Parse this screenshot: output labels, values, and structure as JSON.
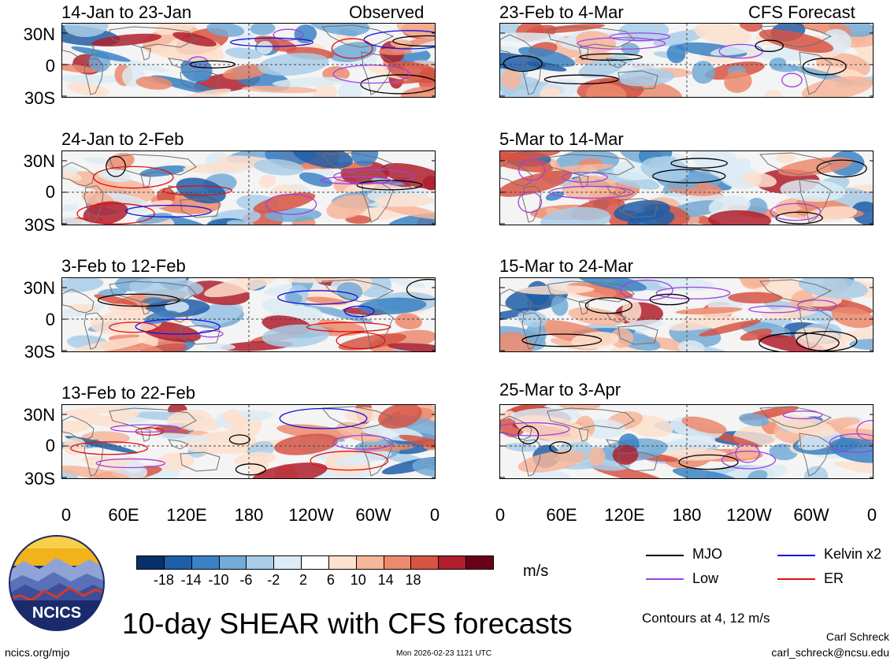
{
  "header": {
    "left_label": "Observed",
    "right_label": "CFS Forecast"
  },
  "panels_left": [
    {
      "period": "14-Jan to 23-Jan"
    },
    {
      "period": "24-Jan to 2-Feb"
    },
    {
      "period": "3-Feb to 12-Feb"
    },
    {
      "period": "13-Feb to 22-Feb"
    }
  ],
  "panels_right": [
    {
      "period": "23-Feb to 4-Mar"
    },
    {
      "period": "5-Mar to 14-Mar"
    },
    {
      "period": "15-Mar to 24-Mar"
    },
    {
      "period": "25-Mar to 3-Apr"
    }
  ],
  "axes": {
    "y_ticks": [
      "30N",
      "0",
      "30S"
    ],
    "x_ticks": [
      "0",
      "60E",
      "120E",
      "180",
      "120W",
      "60W",
      "0"
    ]
  },
  "colorbar": {
    "labels": [
      "-18",
      "-14",
      "-10",
      "-6",
      "-2",
      "2",
      "6",
      "10",
      "14",
      "18"
    ],
    "colors": [
      "#08306b",
      "#1f5ea8",
      "#3b82c4",
      "#74aad6",
      "#a9cde7",
      "#dcebf5",
      "#ffffff",
      "#fde0cf",
      "#f7b59a",
      "#ec8a6d",
      "#d65444",
      "#b01e2d",
      "#6b0019"
    ],
    "units": "m/s"
  },
  "legend": {
    "items": [
      {
        "label": "MJO",
        "color": "#000000"
      },
      {
        "label": "Kelvin x2",
        "color": "#1010e0"
      },
      {
        "label": "Low",
        "color": "#a040e0"
      },
      {
        "label": "ER",
        "color": "#e01010"
      }
    ],
    "contours_note": "Contours at 4, 12 m/s"
  },
  "footer": {
    "logo_text": "NCICS",
    "title": "10-day SHEAR with CFS forecasts",
    "url": "ncics.org/mjo",
    "timestamp": "Mon 2026-02-23 1121 UTC",
    "author": "Carl Schreck",
    "email": "carl_schreck@ncsu.edu"
  }
}
